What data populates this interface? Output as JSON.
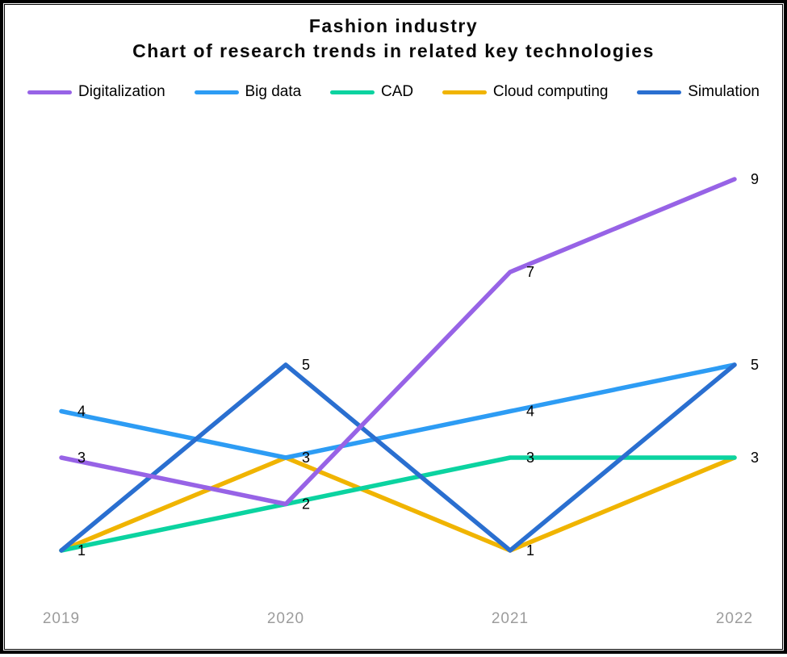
{
  "page": {
    "background": "#ffffff",
    "border_color": "#000000"
  },
  "chart_data": {
    "type": "line",
    "title": "Fashion industry",
    "subtitle": "Chart of research trends in related key technologies",
    "x": [
      "2019",
      "2020",
      "2021",
      "2022"
    ],
    "series": [
      {
        "name": "Digitalization",
        "color": "#9763E6",
        "values": [
          3,
          2,
          7,
          9
        ]
      },
      {
        "name": "Big data",
        "color": "#2D9CF4",
        "values": [
          4,
          3,
          4,
          5
        ]
      },
      {
        "name": "CAD",
        "color": "#0BD3A0",
        "values": [
          1,
          2,
          3,
          3
        ]
      },
      {
        "name": "Cloud computing",
        "color": "#F0B400",
        "values": [
          1,
          3,
          1,
          3
        ]
      },
      {
        "name": "Simulation",
        "color": "#2A6FD0",
        "values": [
          1,
          5,
          1,
          5
        ]
      }
    ],
    "ylim": [
      1,
      9
    ],
    "grid": false,
    "legend_position": "top",
    "point_labels": true,
    "axis_label_color": "#9c9c9c",
    "point_label_color": "#000000"
  }
}
